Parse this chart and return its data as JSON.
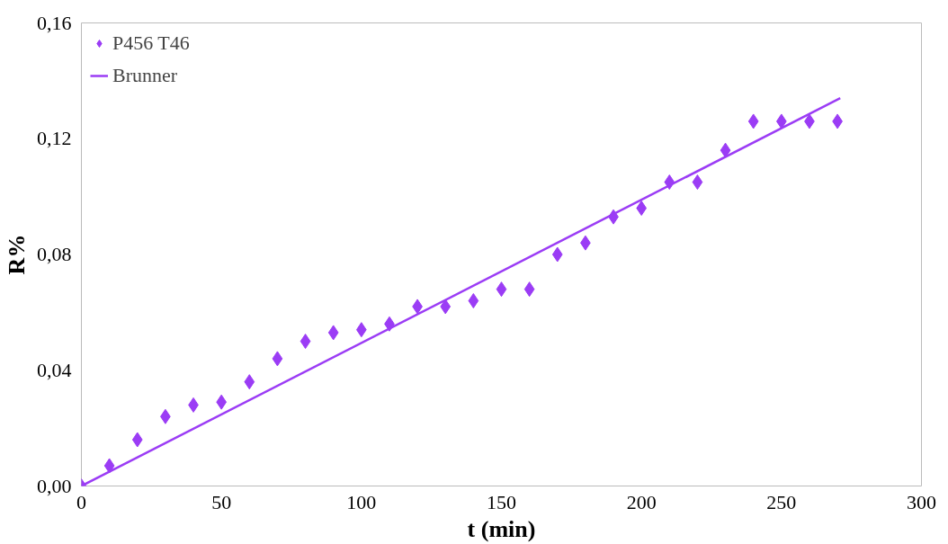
{
  "chart_data": {
    "type": "scatter",
    "xlabel": "t (min)",
    "ylabel": "R%",
    "xlim": [
      0,
      300
    ],
    "xticks": [
      0,
      50,
      100,
      150,
      200,
      250,
      300
    ],
    "ylim": [
      0,
      0.16
    ],
    "yticks": [
      {
        "value": 0,
        "label": "0,00"
      },
      {
        "value": 0.04,
        "label": "0,04"
      },
      {
        "value": 0.08,
        "label": "0,08"
      },
      {
        "value": 0.12,
        "label": "0,12"
      },
      {
        "value": 0.16,
        "label": "0,16"
      }
    ],
    "grid": false,
    "legend": "top left",
    "series": [
      {
        "name": "P456 T46",
        "marker": "diamond",
        "color": "#9b3cf5",
        "x": [
          0,
          10,
          20,
          30,
          40,
          50,
          60,
          70,
          80,
          90,
          100,
          110,
          120,
          130,
          140,
          150,
          160,
          170,
          180,
          190,
          200,
          210,
          220,
          230,
          240,
          250,
          260,
          270
        ],
        "values": [
          0.0,
          0.007,
          0.016,
          0.024,
          0.028,
          0.029,
          0.036,
          0.044,
          0.05,
          0.053,
          0.054,
          0.056,
          0.062,
          0.062,
          0.064,
          0.068,
          0.068,
          0.08,
          0.084,
          0.093,
          0.096,
          0.105,
          0.105,
          0.116,
          0.126,
          0.126,
          0.126,
          0.126
        ]
      },
      {
        "name": "Brunner",
        "type": "line",
        "line_style": "solid",
        "color": "#9b3cf5",
        "x": [
          0,
          271
        ],
        "values": [
          0,
          0.134
        ]
      }
    ]
  }
}
